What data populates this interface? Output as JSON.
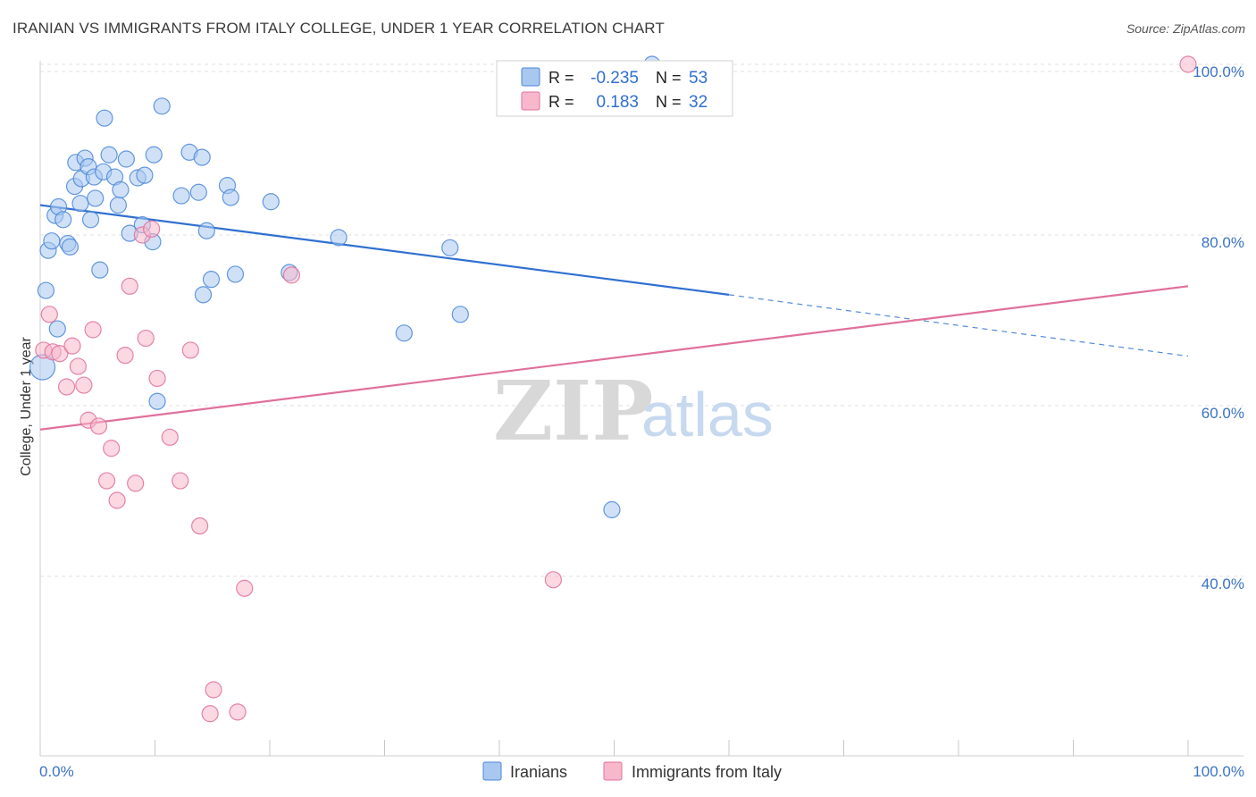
{
  "title": "IRANIAN VS IMMIGRANTS FROM ITALY COLLEGE, UNDER 1 YEAR CORRELATION CHART",
  "source": "Source: ZipAtlas.com",
  "watermark": {
    "zip": "ZIP",
    "atlas": "atlas"
  },
  "legend": {
    "rows": [
      {
        "r_label": "R =",
        "r_value": "-0.235",
        "n_label": "N =",
        "n_value": "53",
        "color": "#a9c8f0"
      },
      {
        "r_label": "R =",
        "r_value": "0.183",
        "n_label": "N =",
        "n_value": "32",
        "color": "#f7b8cb"
      }
    ]
  },
  "chart_data": {
    "type": "scatter",
    "xlabel": "",
    "ylabel": "College, Under 1 year",
    "xlim": [
      0,
      100
    ],
    "ylim": [
      20,
      102
    ],
    "x_tick_labels": [
      "0.0%",
      "100.0%"
    ],
    "y_ticks": [
      40,
      60,
      80,
      100
    ],
    "y_tick_labels": [
      "40.0%",
      "60.0%",
      "80.0%",
      "100.0%"
    ],
    "grid": true,
    "series": [
      {
        "name": "Iranians",
        "color": "#4a86d8",
        "fill": "#a9c8f0",
        "trend": {
          "x0": 0,
          "y0": 83.5,
          "x1": 60,
          "y1": 73,
          "x_dash_end": 100,
          "y_dash_end": 65.8
        },
        "points": [
          [
            0.2,
            64.5
          ],
          [
            0.5,
            73.5
          ],
          [
            0.7,
            78.2
          ],
          [
            1.0,
            79.3
          ],
          [
            1.3,
            82.3
          ],
          [
            1.6,
            83.3
          ],
          [
            1.5,
            69.0
          ],
          [
            2.0,
            81.8
          ],
          [
            2.4,
            79.0
          ],
          [
            2.6,
            78.6
          ],
          [
            3.0,
            85.7
          ],
          [
            3.1,
            88.5
          ],
          [
            3.5,
            83.7
          ],
          [
            3.6,
            86.6
          ],
          [
            3.9,
            89.0
          ],
          [
            4.2,
            88.0
          ],
          [
            4.4,
            81.8
          ],
          [
            4.7,
            86.8
          ],
          [
            4.8,
            84.3
          ],
          [
            5.2,
            75.9
          ],
          [
            5.5,
            87.4
          ],
          [
            5.6,
            93.7
          ],
          [
            6.0,
            89.4
          ],
          [
            6.5,
            86.8
          ],
          [
            6.8,
            83.5
          ],
          [
            7.0,
            85.3
          ],
          [
            7.5,
            88.9
          ],
          [
            7.8,
            80.2
          ],
          [
            8.5,
            86.7
          ],
          [
            8.9,
            81.2
          ],
          [
            9.1,
            87.0
          ],
          [
            9.8,
            79.2
          ],
          [
            9.9,
            89.4
          ],
          [
            10.2,
            60.5
          ],
          [
            10.6,
            95.1
          ],
          [
            12.3,
            84.6
          ],
          [
            13.0,
            89.7
          ],
          [
            13.8,
            85.0
          ],
          [
            14.1,
            89.1
          ],
          [
            14.2,
            73.0
          ],
          [
            14.5,
            80.5
          ],
          [
            14.9,
            74.8
          ],
          [
            16.3,
            85.8
          ],
          [
            16.6,
            84.4
          ],
          [
            17.0,
            75.4
          ],
          [
            20.1,
            83.9
          ],
          [
            21.7,
            75.6
          ],
          [
            26.0,
            79.7
          ],
          [
            31.7,
            68.5
          ],
          [
            35.7,
            78.5
          ],
          [
            36.6,
            70.7
          ],
          [
            49.8,
            47.8
          ],
          [
            53.3,
            100.0
          ]
        ]
      },
      {
        "name": "Immigrants from Italy",
        "color": "#e0709a",
        "fill": "#f7b8cb",
        "trend": {
          "x0": 0,
          "y0": 57.2,
          "x1": 100,
          "y1": 74.0
        },
        "points": [
          [
            0.3,
            66.5
          ],
          [
            0.8,
            70.7
          ],
          [
            1.1,
            66.3
          ],
          [
            1.7,
            66.1
          ],
          [
            2.3,
            62.2
          ],
          [
            2.8,
            67.0
          ],
          [
            3.3,
            64.6
          ],
          [
            3.8,
            62.4
          ],
          [
            4.2,
            58.3
          ],
          [
            4.6,
            68.9
          ],
          [
            5.1,
            57.6
          ],
          [
            5.8,
            51.2
          ],
          [
            6.2,
            55.0
          ],
          [
            6.7,
            48.9
          ],
          [
            7.4,
            65.9
          ],
          [
            7.8,
            74.0
          ],
          [
            8.3,
            50.9
          ],
          [
            8.9,
            80.0
          ],
          [
            9.2,
            67.9
          ],
          [
            9.7,
            80.7
          ],
          [
            10.2,
            63.2
          ],
          [
            11.3,
            56.3
          ],
          [
            12.2,
            51.2
          ],
          [
            13.1,
            66.5
          ],
          [
            13.9,
            45.9
          ],
          [
            14.8,
            23.9
          ],
          [
            15.1,
            26.7
          ],
          [
            17.2,
            24.1
          ],
          [
            17.8,
            38.6
          ],
          [
            21.9,
            75.3
          ],
          [
            44.7,
            39.6
          ],
          [
            100.0,
            100.0
          ]
        ]
      }
    ]
  },
  "bottom_legend": [
    {
      "label": "Iranians",
      "color": "#a9c8f0",
      "stroke": "#4a86d8"
    },
    {
      "label": "Immigrants from Italy",
      "color": "#f7b8cb",
      "stroke": "#e0709a"
    }
  ]
}
